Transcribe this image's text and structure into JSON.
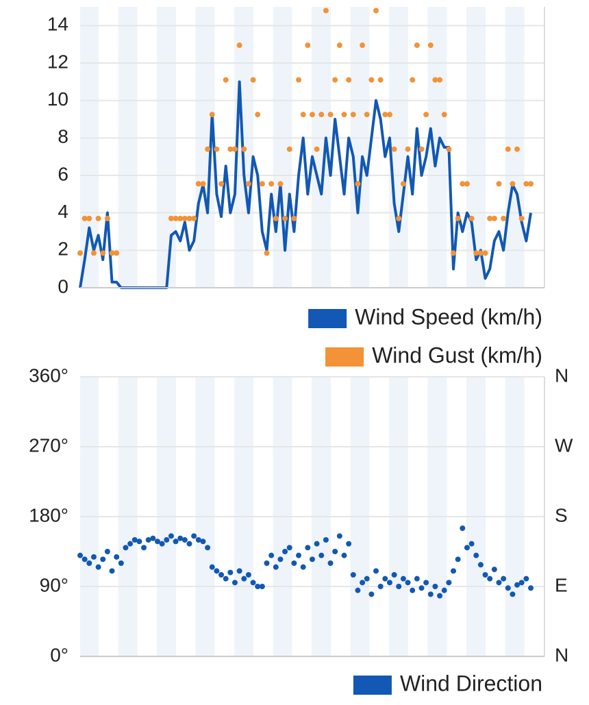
{
  "chart_data": [
    {
      "type": "line",
      "ylim": [
        0,
        15
      ],
      "yticks": [
        0,
        2,
        4,
        6,
        8,
        10,
        12,
        14
      ],
      "grid": true,
      "categories": [
        null,
        null,
        null,
        null,
        null,
        null,
        null,
        null,
        null,
        null,
        null,
        null,
        null,
        null,
        null,
        null,
        null,
        null,
        null,
        null,
        null,
        null,
        null,
        null,
        null,
        null,
        null,
        null,
        null,
        null,
        null,
        null,
        null,
        null,
        null,
        null,
        null,
        null,
        null,
        null,
        null,
        null,
        null,
        null,
        null,
        null,
        null,
        null,
        null,
        null,
        null,
        null,
        null,
        null,
        null,
        null,
        null,
        null,
        null,
        null,
        null,
        null,
        null,
        null,
        null,
        null,
        null,
        null,
        null,
        null,
        null,
        null,
        null,
        null,
        null,
        null,
        null,
        null,
        null,
        null,
        null,
        null,
        null,
        null,
        null,
        null,
        null,
        null,
        null,
        null,
        null,
        null,
        null,
        null,
        null,
        null,
        null,
        null,
        null,
        null
      ],
      "series": [
        {
          "name": "Wind Speed (km/h)",
          "color": "#1258b4",
          "mark": "line",
          "values": [
            0,
            1.5,
            3.2,
            2,
            2.8,
            1.5,
            4,
            0.3,
            0.3,
            0,
            0,
            0,
            0,
            0,
            0,
            0,
            0,
            0,
            0,
            0,
            2.8,
            3,
            2.5,
            3.5,
            2,
            2.5,
            4.5,
            5.5,
            4,
            9.3,
            5,
            3.8,
            6.5,
            4,
            5,
            11,
            6,
            4,
            7,
            6,
            3,
            2,
            5,
            3,
            5.5,
            2,
            5,
            3,
            6,
            8,
            5,
            7,
            6,
            5,
            8,
            6,
            9,
            7,
            5,
            8,
            7,
            4,
            7,
            6,
            8,
            10,
            9,
            7,
            8,
            4.5,
            3,
            5,
            7,
            5,
            8.5,
            6,
            7,
            8.5,
            6.5,
            8,
            7.5,
            7.5,
            1,
            4,
            3,
            4,
            3.5,
            1.5,
            2,
            0.5,
            1,
            2.5,
            3,
            2,
            4,
            5.5,
            5,
            3.5,
            2.5,
            4
          ]
        },
        {
          "name": "Wind Gust (km/h)",
          "color": "#f39237",
          "mark": "dot",
          "values": [
            1.85,
            3.7,
            3.7,
            1.85,
            3.7,
            1.85,
            3.7,
            1.85,
            1.85,
            null,
            null,
            null,
            null,
            null,
            null,
            null,
            null,
            null,
            null,
            null,
            3.7,
            3.7,
            3.7,
            3.7,
            3.7,
            3.7,
            5.55,
            5.55,
            7.4,
            9.25,
            7.4,
            5.55,
            11.1,
            7.4,
            7.4,
            12.95,
            7.4,
            5.55,
            11.1,
            9.25,
            5.55,
            1.85,
            5.55,
            3.7,
            5.55,
            3.7,
            7.4,
            3.7,
            11.1,
            9.25,
            12.95,
            9.25,
            7.4,
            9.25,
            14.8,
            9.25,
            11.1,
            12.95,
            9.25,
            11.1,
            9.25,
            5.55,
            12.95,
            9.25,
            11.1,
            14.8,
            11.1,
            9.25,
            9.25,
            7.4,
            3.7,
            5.55,
            7.4,
            11.1,
            12.95,
            7.4,
            9.25,
            12.95,
            11.1,
            11.1,
            9.25,
            7.4,
            1.85,
            3.7,
            5.55,
            5.55,
            3.7,
            1.85,
            1.85,
            1.85,
            3.7,
            3.7,
            5.55,
            3.7,
            7.4,
            5.55,
            7.4,
            3.7,
            5.55,
            5.55
          ]
        }
      ]
    },
    {
      "type": "scatter",
      "ylim": [
        0,
        360
      ],
      "yticks": [
        {
          "value": 0,
          "label": "0°"
        },
        {
          "value": 90,
          "label": "90°"
        },
        {
          "value": 180,
          "label": "180°"
        },
        {
          "value": 270,
          "label": "270°"
        },
        {
          "value": 360,
          "label": "360°"
        }
      ],
      "y2lim": [
        0,
        360
      ],
      "y2ticks": [
        {
          "value": 0,
          "label": "N"
        },
        {
          "value": 90,
          "label": "E"
        },
        {
          "value": 180,
          "label": "S"
        },
        {
          "value": 270,
          "label": "W"
        },
        {
          "value": 360,
          "label": "N"
        }
      ],
      "grid": true,
      "categories": [
        null,
        null,
        null,
        null,
        null,
        null,
        null,
        null,
        null,
        null,
        null,
        null,
        null,
        null,
        null,
        null,
        null,
        null,
        null,
        null,
        null,
        null,
        null,
        null,
        null,
        null,
        null,
        null,
        null,
        null,
        null,
        null,
        null,
        null,
        null,
        null,
        null,
        null,
        null,
        null,
        null,
        null,
        null,
        null,
        null,
        null,
        null,
        null,
        null,
        null,
        null,
        null,
        null,
        null,
        null,
        null,
        null,
        null,
        null,
        null,
        null,
        null,
        null,
        null,
        null,
        null,
        null,
        null,
        null,
        null,
        null,
        null,
        null,
        null,
        null,
        null,
        null,
        null,
        null,
        null,
        null,
        null,
        null,
        null,
        null,
        null,
        null,
        null,
        null,
        null,
        null,
        null,
        null,
        null,
        null,
        null,
        null,
        null,
        null,
        null
      ],
      "series": [
        {
          "name": "Wind Direction",
          "color": "#1258b4",
          "mark": "dot",
          "values": [
            130,
            125,
            120,
            128,
            115,
            125,
            135,
            110,
            128,
            120,
            140,
            145,
            150,
            148,
            140,
            150,
            152,
            148,
            145,
            150,
            155,
            148,
            152,
            150,
            145,
            155,
            150,
            148,
            140,
            115,
            110,
            105,
            100,
            108,
            95,
            110,
            100,
            105,
            95,
            90,
            90,
            120,
            130,
            115,
            125,
            135,
            140,
            120,
            130,
            115,
            140,
            125,
            145,
            130,
            150,
            120,
            135,
            155,
            130,
            145,
            105,
            85,
            95,
            100,
            80,
            110,
            90,
            100,
            95,
            105,
            90,
            100,
            95,
            85,
            100,
            88,
            95,
            80,
            90,
            78,
            85,
            95,
            110,
            125,
            165,
            140,
            145,
            130,
            118,
            105,
            100,
            112,
            95,
            100,
            88,
            80,
            92,
            95,
            100,
            88
          ]
        }
      ]
    }
  ]
}
